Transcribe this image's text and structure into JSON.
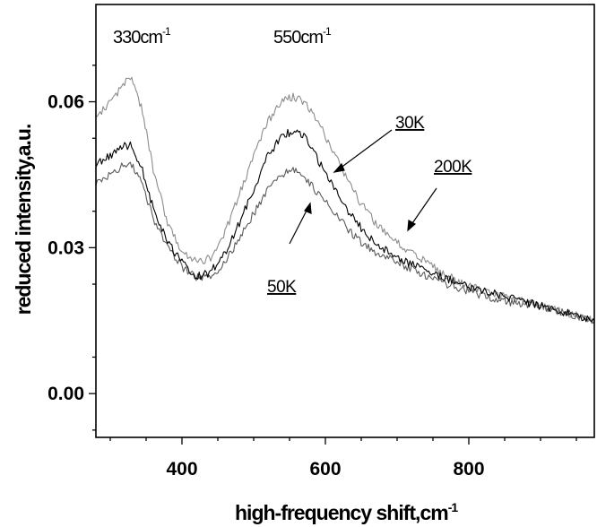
{
  "chart_data": {
    "type": "line",
    "title": "",
    "xlabel": "high-frequency shift,cm",
    "xlabel_sup": "-1",
    "ylabel": "reduced intensity,a.u.",
    "xlim": [
      280,
      975
    ],
    "ylim": [
      -0.009,
      0.08
    ],
    "x_ticks": [
      400,
      600,
      800
    ],
    "x_tick_labels": [
      "400",
      "600",
      "800"
    ],
    "y_ticks": [
      0.0,
      0.03,
      0.06
    ],
    "y_tick_labels": [
      "0.00",
      "0.03",
      "0.06"
    ],
    "grid": false,
    "legend": "none",
    "annotations": [
      {
        "text": "330cm",
        "sup": "-1",
        "x": 330
      },
      {
        "text": "550cm",
        "sup": "-1",
        "x": 550
      }
    ],
    "series": [
      {
        "name": "30K",
        "color": "#000000",
        "x": [
          280,
          300,
          320,
          330,
          345,
          360,
          380,
          400,
          420,
          440,
          460,
          480,
          500,
          520,
          540,
          555,
          570,
          590,
          610,
          630,
          650,
          670,
          700,
          730,
          760,
          800,
          850,
          900,
          950,
          975
        ],
        "y": [
          0.047,
          0.049,
          0.051,
          0.051,
          0.046,
          0.038,
          0.031,
          0.027,
          0.024,
          0.025,
          0.029,
          0.035,
          0.042,
          0.049,
          0.053,
          0.054,
          0.053,
          0.048,
          0.043,
          0.038,
          0.034,
          0.031,
          0.028,
          0.026,
          0.024,
          0.022,
          0.02,
          0.018,
          0.016,
          0.015
        ]
      },
      {
        "name": "50K",
        "color": "#5a5a5a",
        "x": [
          280,
          300,
          320,
          330,
          345,
          360,
          380,
          400,
          420,
          440,
          460,
          480,
          500,
          520,
          540,
          555,
          570,
          590,
          610,
          630,
          650,
          670,
          700,
          730,
          760,
          800,
          850,
          900,
          950,
          975
        ],
        "y": [
          0.043,
          0.045,
          0.047,
          0.047,
          0.043,
          0.036,
          0.03,
          0.026,
          0.024,
          0.024,
          0.027,
          0.032,
          0.037,
          0.042,
          0.045,
          0.046,
          0.045,
          0.041,
          0.038,
          0.034,
          0.031,
          0.029,
          0.027,
          0.025,
          0.023,
          0.021,
          0.019,
          0.018,
          0.016,
          0.015
        ]
      },
      {
        "name": "200K",
        "color": "#8c8c8c",
        "x": [
          280,
          300,
          320,
          330,
          345,
          360,
          380,
          400,
          420,
          440,
          460,
          480,
          500,
          520,
          540,
          555,
          570,
          590,
          610,
          630,
          650,
          670,
          700,
          730,
          760,
          800,
          850,
          900,
          950,
          975
        ],
        "y": [
          0.057,
          0.06,
          0.064,
          0.065,
          0.058,
          0.046,
          0.035,
          0.029,
          0.027,
          0.028,
          0.033,
          0.041,
          0.049,
          0.056,
          0.06,
          0.061,
          0.06,
          0.056,
          0.05,
          0.044,
          0.039,
          0.035,
          0.031,
          0.028,
          0.025,
          0.022,
          0.02,
          0.018,
          0.016,
          0.015
        ]
      }
    ]
  }
}
